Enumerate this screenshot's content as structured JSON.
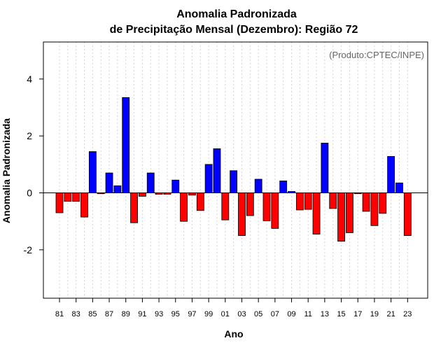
{
  "chart_data": {
    "type": "bar",
    "title": "Anomalia Padronizada",
    "subtitle": "de Precipitação Mensal (Dezembro): Região 72",
    "xlabel": "Ano",
    "ylabel": "Anomalia Padronizada",
    "annotation": "(Produto:CPTEC/INPE)",
    "ylim": [
      -3.7,
      5.3
    ],
    "yticks": [
      4,
      2,
      0,
      -2
    ],
    "ytick_labels": [
      "4",
      "2",
      "0",
      "-2"
    ],
    "categories": [
      "81",
      "82",
      "83",
      "84",
      "85",
      "86",
      "87",
      "88",
      "89",
      "90",
      "91",
      "92",
      "93",
      "94",
      "95",
      "96",
      "97",
      "98",
      "99",
      "00",
      "01",
      "02",
      "03",
      "04",
      "05",
      "06",
      "07",
      "08",
      "09",
      "10",
      "11",
      "12",
      "13",
      "14",
      "15",
      "16",
      "17",
      "18",
      "19",
      "20",
      "21",
      "22",
      "23"
    ],
    "xtick_labels": [
      "81",
      "83",
      "85",
      "87",
      "89",
      "91",
      "93",
      "95",
      "97",
      "99",
      "01",
      "03",
      "05",
      "07",
      "09",
      "11",
      "13",
      "15",
      "17",
      "19",
      "21",
      "23"
    ],
    "values": [
      -0.7,
      -0.3,
      -0.3,
      -0.85,
      1.45,
      -0.03,
      0.7,
      0.25,
      3.35,
      -1.05,
      -0.12,
      0.7,
      -0.05,
      -0.05,
      0.45,
      -1.0,
      -0.08,
      -0.62,
      1.0,
      1.55,
      -0.95,
      0.78,
      -1.5,
      -0.8,
      0.48,
      -0.98,
      -1.25,
      0.42,
      0.05,
      -0.6,
      -0.58,
      -1.45,
      1.75,
      -0.55,
      -1.7,
      -1.4,
      -0.03,
      -0.65,
      -1.15,
      -0.72,
      1.28,
      0.35,
      -1.5
    ],
    "colors": {
      "positive": "#0000ff",
      "negative": "#ff0000",
      "grid": "#d3d3d3"
    }
  }
}
